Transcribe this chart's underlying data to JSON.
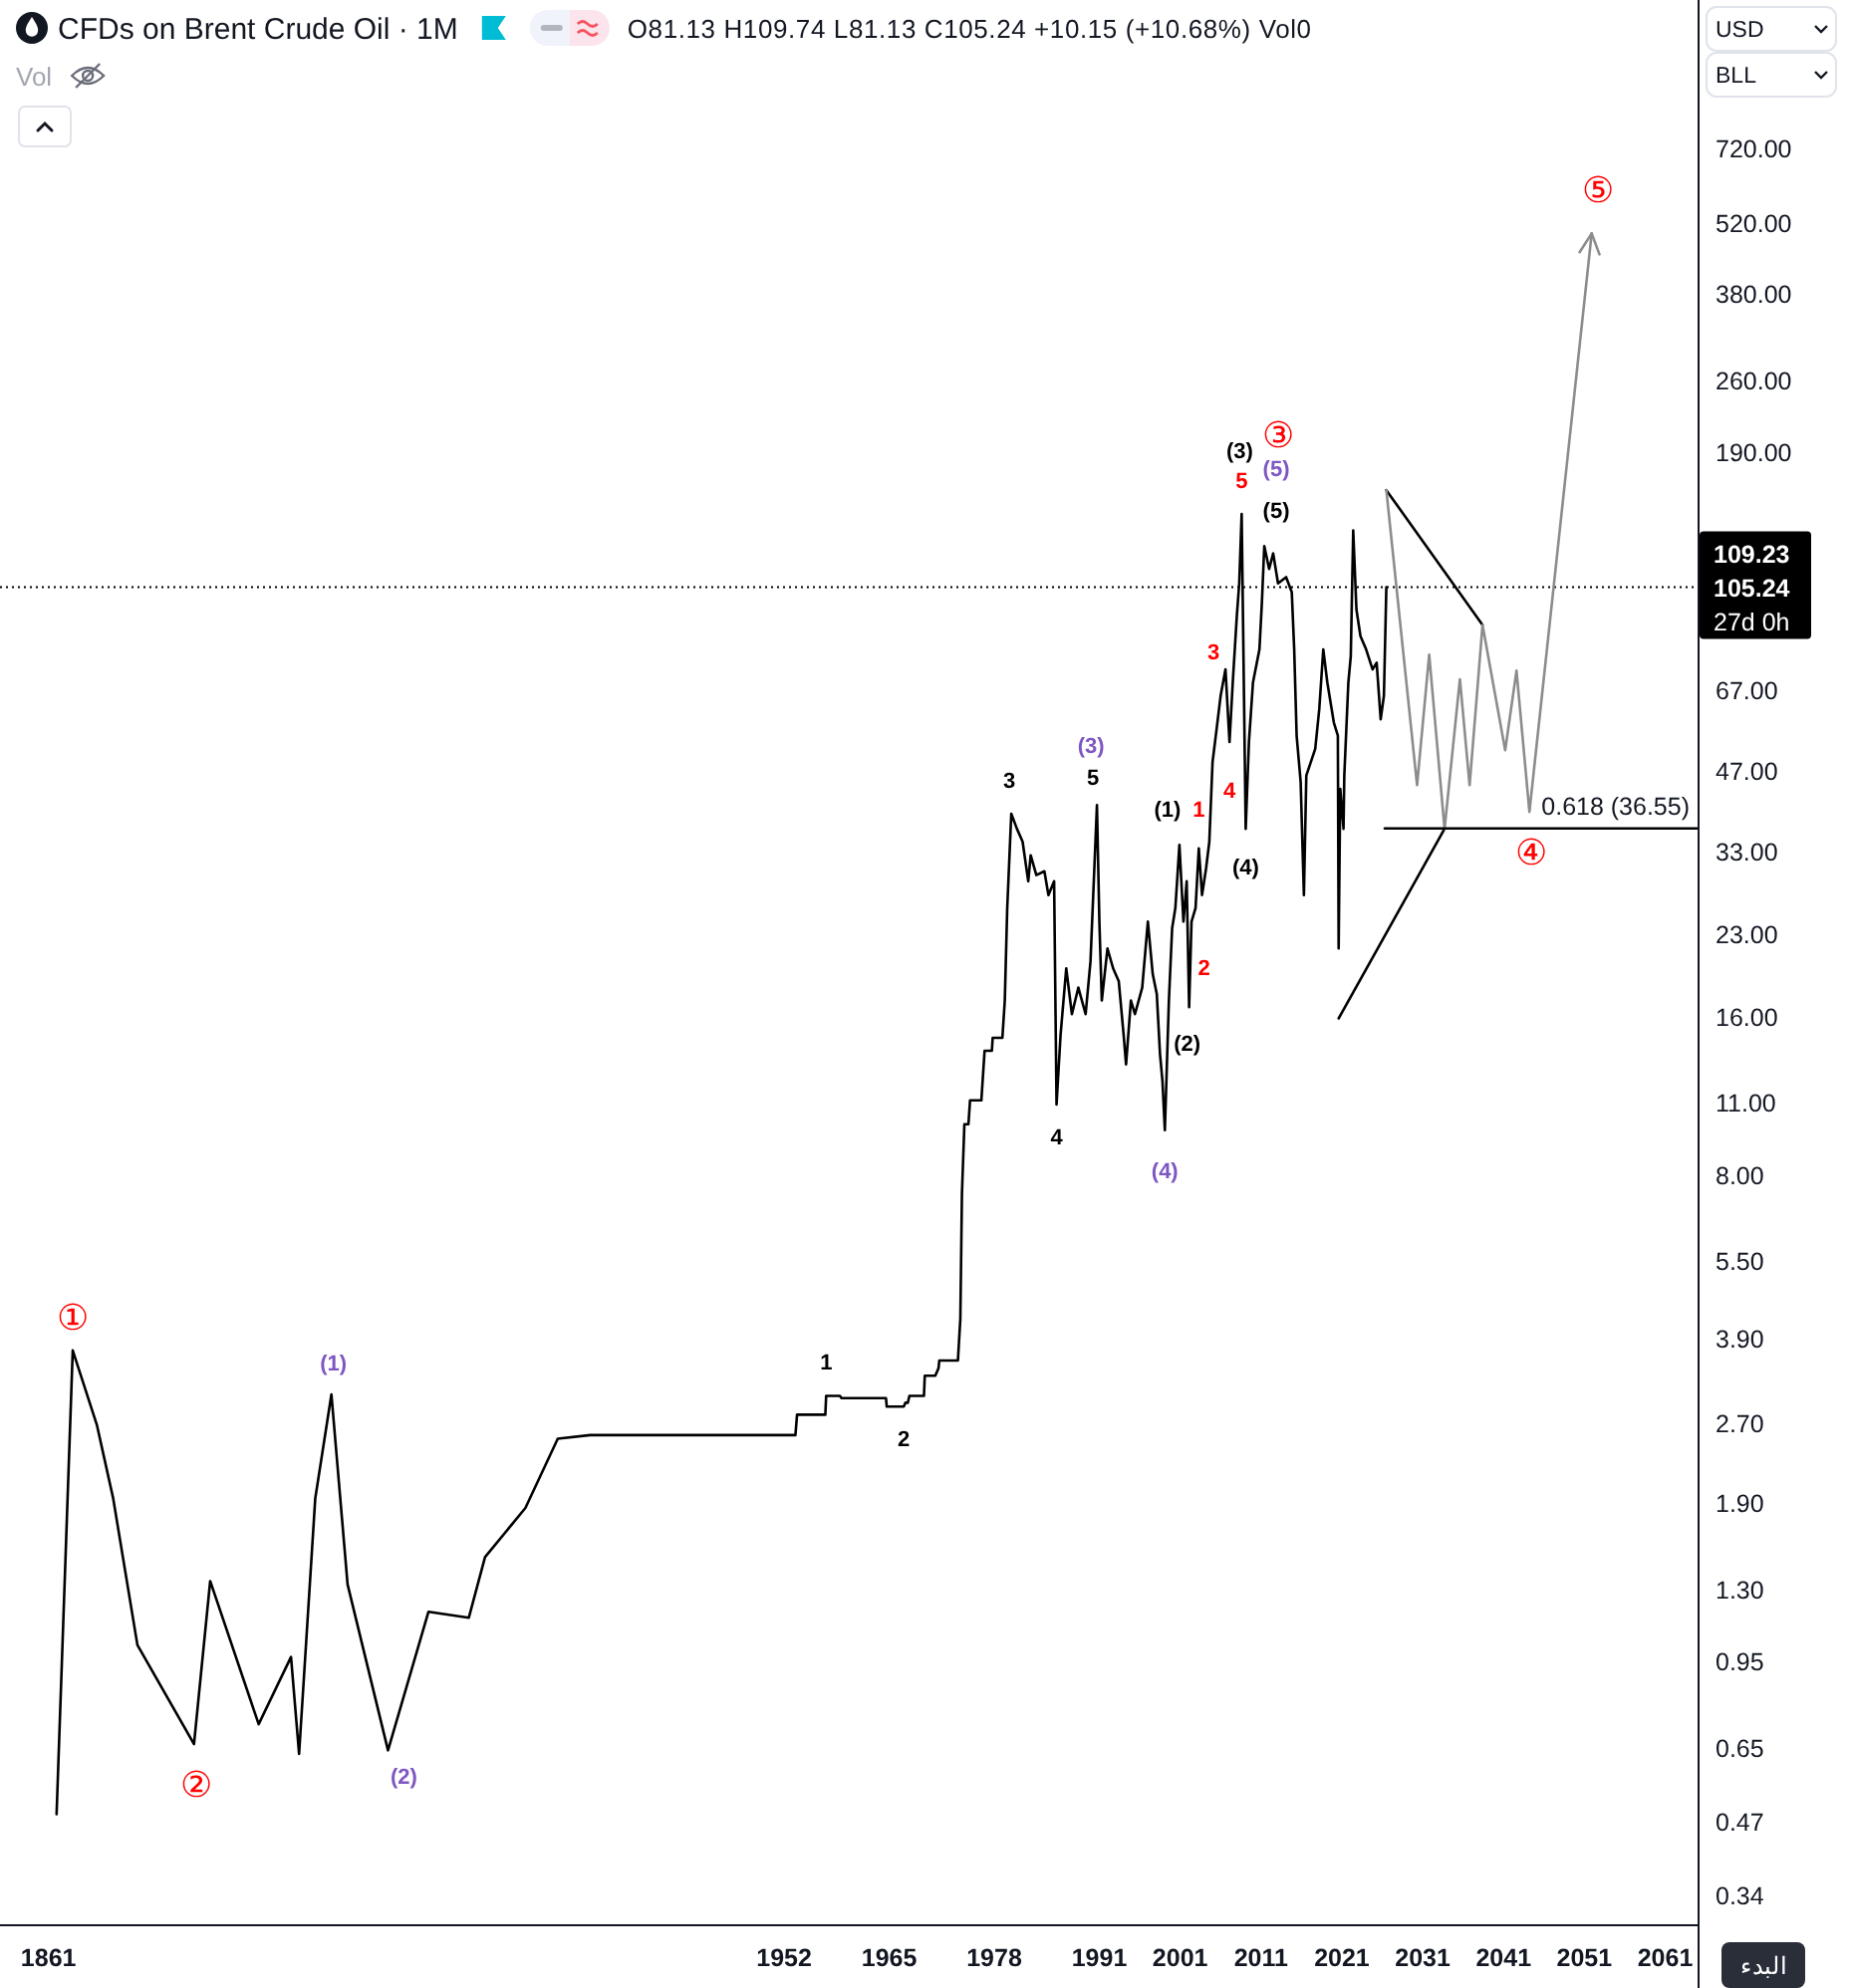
{
  "chart_data": {
    "type": "line",
    "title": "CFDs on Brent Crude Oil · 1M",
    "subtitle": "O81.13 H109.74 L81.13 C105.24 +10.15 (+10.68%) Vol0",
    "log": "y",
    "grid": false,
    "legend": false,
    "xlim": [
      1855,
      2065
    ],
    "xticks": [
      1861,
      1952,
      1965,
      1978,
      1991,
      2001,
      2011,
      2021,
      2031,
      2041,
      2051,
      2061
    ],
    "ylim": [
      0.3,
      1380
    ],
    "yticks": [
      {
        "value": 720,
        "label": "720.00"
      },
      {
        "value": 520,
        "label": "520.00"
      },
      {
        "value": 380,
        "label": "380.00"
      },
      {
        "value": 260,
        "label": "260.00"
      },
      {
        "value": 190,
        "label": "190.00"
      },
      {
        "value": 67,
        "label": "67.00"
      },
      {
        "value": 47,
        "label": "47.00"
      },
      {
        "value": 33,
        "label": "33.00"
      },
      {
        "value": 23,
        "label": "23.00"
      },
      {
        "value": 16,
        "label": "16.00"
      },
      {
        "value": 11,
        "label": "11.00"
      },
      {
        "value": 8,
        "label": "8.00"
      },
      {
        "value": 5.5,
        "label": "5.50"
      },
      {
        "value": 3.9,
        "label": "3.90"
      },
      {
        "value": 2.7,
        "label": "2.70"
      },
      {
        "value": 1.9,
        "label": "1.90"
      },
      {
        "value": 1.3,
        "label": "1.30"
      },
      {
        "value": 0.95,
        "label": "0.95"
      },
      {
        "value": 0.65,
        "label": "0.65"
      },
      {
        "value": 0.47,
        "label": "0.47"
      },
      {
        "value": 0.34,
        "label": "0.34"
      }
    ],
    "series": [
      {
        "color": "#000000",
        "x": [
          1862,
          1864,
          1867,
          1869,
          1872,
          1879,
          1881,
          1887,
          1891,
          1892,
          1894,
          1896,
          1898,
          1903,
          1908,
          1913,
          1915,
          1920,
          1924,
          1928,
          1953.4,
          1953.6,
          1957.1,
          1957.2,
          1958.9,
          1959.1,
          1964.6,
          1964.7,
          1966.8,
          1967.0,
          1967.3,
          1967.5,
          1969.3,
          1969.4,
          1970.7,
          1971.1,
          1971.2,
          1973.5,
          1973.7,
          1973.8,
          1974.0,
          1974.3,
          1974.8,
          1975.0,
          1976.4,
          1976.8,
          1977.7,
          1977.8,
          1979.0,
          1979.3,
          1979.6,
          1980.1,
          1980.8,
          1981.5,
          1982.2,
          1982.5,
          1983.2,
          1984.2,
          1984.7,
          1985.4,
          1985.7,
          1986.2,
          1986.9,
          1987.6,
          1988.4,
          1989.3,
          1989.9,
          1990.7,
          1991.0,
          1991.3,
          1992.0,
          1992.7,
          1993.4,
          1994.0,
          1994.3,
          1994.9,
          1995.4,
          1996.3,
          1997.0,
          1997.6,
          1998.1,
          1998.5,
          1998.8,
          1999.1,
          1999.6,
          2000.0,
          2000.4,
          2000.9,
          2001.4,
          2001.8,
          2002.1,
          2002.4,
          2002.9,
          2003.3,
          2003.7,
          2004.2,
          2004.6,
          2005.0,
          2005.5,
          2006.0,
          2006.6,
          2007.1,
          2007.5,
          2008.0,
          2008.3,
          2008.6,
          2009.1,
          2009.5,
          2010.0,
          2010.8,
          2011.1,
          2011.4,
          2012.0,
          2012.5,
          2013.1,
          2014.1,
          2014.8,
          2015.1,
          2015.4,
          2015.9,
          2016.3,
          2016.6,
          2017.7,
          2018.2,
          2018.7,
          2019.2,
          2020.0,
          2020.5,
          2020.6,
          2020.8,
          2021.2,
          2021.3,
          2021.8,
          2022.1,
          2022.4,
          2022.8,
          2023.3,
          2024.0,
          2024.8,
          2025.3,
          2025.8,
          2026.2,
          2026.5
        ],
        "values": [
          0.486,
          3.71,
          2.67,
          1.94,
          1.02,
          0.661,
          1.35,
          0.721,
          0.968,
          0.633,
          1.94,
          3.06,
          1.33,
          0.643,
          1.18,
          1.15,
          1.5,
          1.86,
          2.52,
          2.56,
          2.56,
          2.8,
          2.8,
          3.04,
          3.04,
          3.01,
          3.01,
          2.9,
          2.9,
          2.95,
          2.95,
          3.04,
          3.04,
          3.32,
          3.32,
          3.43,
          3.55,
          3.55,
          4.01,
          4.26,
          7.39,
          10,
          10,
          11.1,
          11.1,
          13.8,
          13.8,
          14.6,
          14.6,
          17.2,
          25.8,
          39,
          36.5,
          34.5,
          29,
          32.5,
          29.8,
          30.3,
          27.3,
          29,
          10.9,
          14.8,
          19.8,
          16.2,
          18.2,
          16.2,
          20.4,
          40.5,
          24.3,
          17.2,
          21.6,
          19.8,
          18.7,
          14.8,
          13,
          17.2,
          16.2,
          18.2,
          24.3,
          19.3,
          17.7,
          13.6,
          12.1,
          9.74,
          17.2,
          23.6,
          25.8,
          34,
          24.3,
          29,
          16.7,
          24.3,
          25.8,
          33.5,
          27.3,
          30.7,
          34.5,
          48.9,
          56.5,
          65.4,
          73.4,
          53.4,
          69.3,
          92.6,
          107,
          145,
          36.5,
          53.4,
          69.3,
          80.1,
          98.2,
          126,
          114,
          122,
          107,
          110,
          103,
          80.1,
          54.9,
          44.8,
          27.3,
          46.1,
          51.8,
          61.7,
          80.1,
          69.3,
          58.2,
          54.9,
          21.6,
          43.5,
          36.5,
          46.1,
          69.3,
          77.8,
          135,
          95.4,
          84.9,
          80.1,
          73.4,
          75.6,
          59,
          65.4,
          105.24
        ]
      },
      {
        "color": "#000000",
        "x": [
          2026.5,
          2038.4
        ],
        "values": [
          161,
          89.2
        ]
      },
      {
        "color": "#000000",
        "x": [
          2020.6,
          2033.7
        ],
        "values": [
          15.9,
          36.5
        ]
      },
      {
        "color": "#8c8c8c",
        "x": [
          2026.5,
          2030.3,
          2031.8,
          2033.7,
          2035.6,
          2036.8,
          2038.4,
          2041.2,
          2042.6,
          2044.2,
          2051.9
        ],
        "values": [
          161,
          44.2,
          78.3,
          36.5,
          70.3,
          44.2,
          89.2,
          51.5,
          73,
          39.3,
          496
        ]
      },
      {
        "name": "0.618 (36.55)",
        "color": "#000000",
        "x": [
          2026.3,
          2065
        ],
        "values": [
          36.55,
          36.55
        ]
      }
    ],
    "ref_lines": [
      {
        "axis": "y",
        "value": 105.24,
        "label": "105.24",
        "color": "#000000",
        "line_style": "dotted"
      }
    ],
    "annotations": [
      {
        "text": "①",
        "x": 1864,
        "y": 3.71
      },
      {
        "text": "②",
        "x": 1879,
        "y": 0.661
      },
      {
        "text": "③",
        "x": 2011.4,
        "y": 126
      },
      {
        "text": "④",
        "x": 2044.2,
        "y": 39.3
      },
      {
        "text": "⑤",
        "x": 2051.9,
        "y": 496
      },
      {
        "text": "(1)",
        "x": 1896,
        "y": 3.06
      },
      {
        "text": "(2)",
        "x": 1903,
        "y": 0.643
      },
      {
        "text": "(3)",
        "x": 1990.7,
        "y": 40.5
      },
      {
        "text": "(4)",
        "x": 1999.1,
        "y": 9.74
      },
      {
        "text": "(5)",
        "x": 2011.4,
        "y": 126
      },
      {
        "text": "1",
        "x": 1957.2,
        "y": 3.04
      },
      {
        "text": "2",
        "x": 1966.8,
        "y": 2.9
      },
      {
        "text": "3",
        "x": 1980.1,
        "y": 39
      },
      {
        "text": "4",
        "x": 1985.7,
        "y": 10.9
      },
      {
        "text": "5",
        "x": 1990.7,
        "y": 40.5
      },
      {
        "text": "(1)",
        "x": 2000.9,
        "y": 34
      },
      {
        "text": "(2)",
        "x": 2002.1,
        "y": 16.7
      },
      {
        "text": "(3)",
        "x": 2008.6,
        "y": 145
      },
      {
        "text": "(4)",
        "x": 2009.1,
        "y": 36.5
      },
      {
        "text": "(5)",
        "x": 2011.4,
        "y": 126
      },
      {
        "text": "1",
        "x": 2003.3,
        "y": 33.5
      },
      {
        "text": "2",
        "x": 2003.7,
        "y": 27.3
      },
      {
        "text": "3",
        "x": 2006.6,
        "y": 73.4
      },
      {
        "text": "4",
        "x": 2007.1,
        "y": 53.4
      },
      {
        "text": "5",
        "x": 2008.6,
        "y": 145
      },
      "109.23",
      "27d 0h",
      "Vol",
      "USD",
      "BLL",
      "البدء"
    ]
  }
}
